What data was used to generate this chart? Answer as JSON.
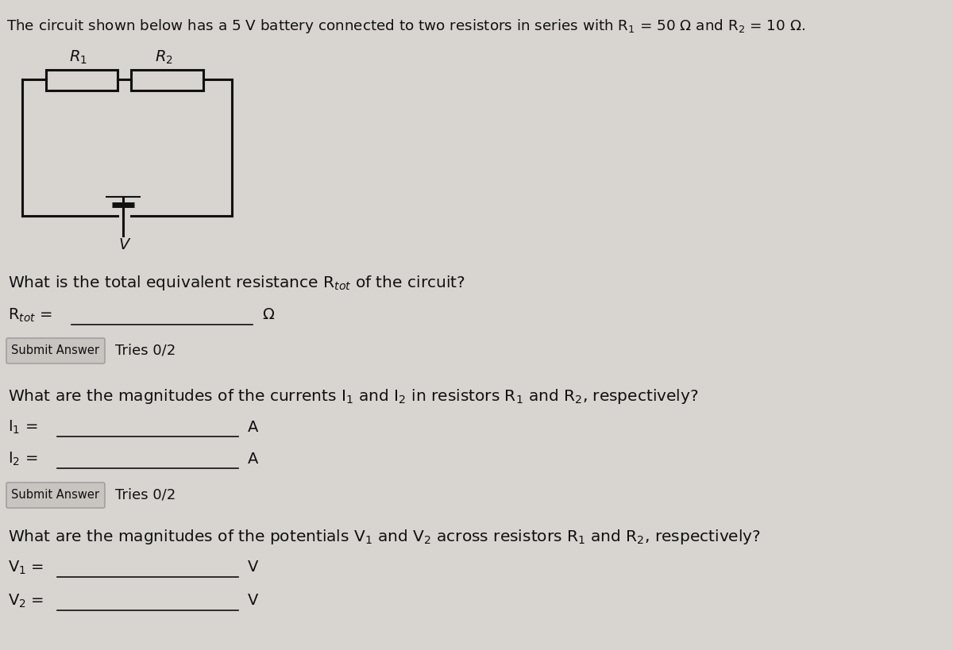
{
  "bg_color": "#d8d4d0",
  "line_color": "#111111",
  "text_color": "#111111",
  "btn_color": "#c8c4c0",
  "btn_border": "#999999",
  "circuit_lw": 2.2,
  "title": "The circuit shown below has a 5 V battery connected to two resistors in series with R$_1$ = 50 Ω and R$_2$ = 10 Ω.",
  "q1": "What is the total equivalent resistance R$_{tot}$ of the circuit?",
  "q1_label": "R$_{tot}$ =",
  "q1_unit": "Ω",
  "q2": "What are the magnitudes of the currents I$_1$ and I$_2$ in resistors R$_1$ and R$_2$, respectively?",
  "q2_l1": "I$_1$ =",
  "q2_u1": "A",
  "q2_l2": "I$_2$ =",
  "q2_u2": "A",
  "q3": "What are the magnitudes of the potentials V$_1$ and V$_2$ across resistors R$_1$ and R$_2$, respectively?",
  "q3_l1": "V$_1$ =",
  "q3_u1": "V",
  "q3_l2": "V$_2$ =",
  "q3_u2": "V",
  "submit": "Submit Answer",
  "tries": "Tries 0/2"
}
